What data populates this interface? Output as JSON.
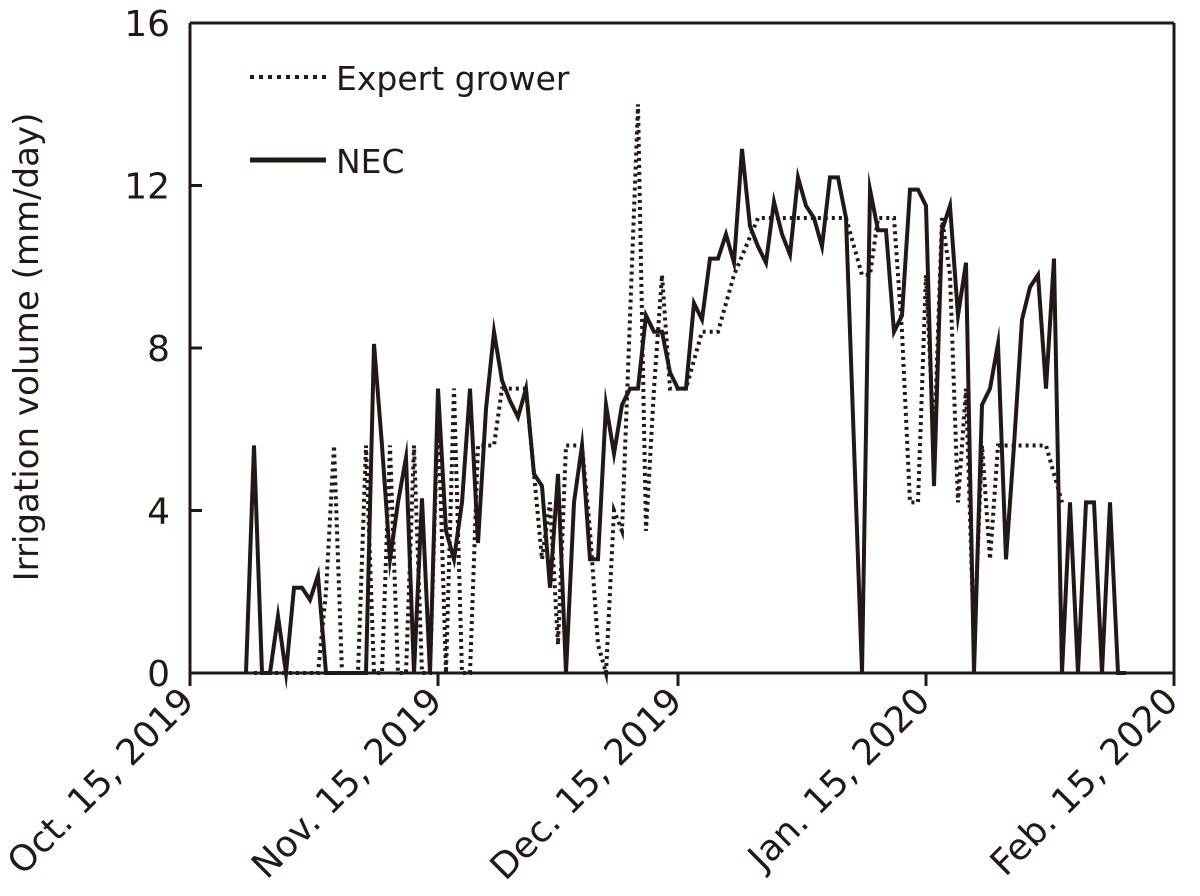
{
  "chart_data": {
    "type": "line",
    "title": "",
    "xlabel": "",
    "ylabel": "Irrigation volume (mm/day)",
    "ylim": [
      0,
      16
    ],
    "yticks": [
      0,
      4,
      8,
      12,
      16
    ],
    "xlim": [
      "2019-10-15",
      "2020-02-15"
    ],
    "xticks": [
      {
        "date": "2019-10-15",
        "label": "Oct. 15, 2019"
      },
      {
        "date": "2019-11-15",
        "label": "Nov. 15, 2019"
      },
      {
        "date": "2019-12-15",
        "label": "Dec. 15, 2019"
      },
      {
        "date": "2020-01-15",
        "label": "Jan. 15, 2020"
      },
      {
        "date": "2020-02-15",
        "label": "Feb. 15, 2020"
      }
    ],
    "grid": false,
    "legend_position": "top-left",
    "series": [
      {
        "name": "Expert grower",
        "style": "dotted",
        "color": "#231815",
        "points": [
          [
            "2019-10-23",
            0
          ],
          [
            "2019-10-31",
            0
          ],
          [
            "2019-11-01",
            2.0
          ],
          [
            "2019-11-02",
            5.6
          ],
          [
            "2019-11-03",
            0
          ],
          [
            "2019-11-04",
            0
          ],
          [
            "2019-11-05",
            0
          ],
          [
            "2019-11-06",
            5.6
          ],
          [
            "2019-11-07",
            0
          ],
          [
            "2019-11-08",
            0
          ],
          [
            "2019-11-09",
            5.6
          ],
          [
            "2019-11-10",
            0
          ],
          [
            "2019-11-11",
            0
          ],
          [
            "2019-11-12",
            5.6
          ],
          [
            "2019-11-13",
            0
          ],
          [
            "2019-11-14",
            0
          ],
          [
            "2019-11-15",
            6.5
          ],
          [
            "2019-11-16",
            0
          ],
          [
            "2019-11-17",
            7.0
          ],
          [
            "2019-11-18",
            0
          ],
          [
            "2019-11-19",
            0
          ],
          [
            "2019-11-20",
            5.6
          ],
          [
            "2019-11-22",
            5.6
          ],
          [
            "2019-11-23",
            7.0
          ],
          [
            "2019-11-26",
            7.0
          ],
          [
            "2019-11-28",
            2.8
          ],
          [
            "2019-11-29",
            4.2
          ],
          [
            "2019-11-30",
            0.7
          ],
          [
            "2019-12-01",
            5.6
          ],
          [
            "2019-12-03",
            5.6
          ],
          [
            "2019-12-04",
            3.5
          ],
          [
            "2019-12-05",
            0.7
          ],
          [
            "2019-12-06",
            0
          ],
          [
            "2019-12-07",
            4.0
          ],
          [
            "2019-12-08",
            3.5
          ],
          [
            "2019-12-10",
            14.0
          ],
          [
            "2019-12-11",
            3.5
          ],
          [
            "2019-12-12",
            7.0
          ],
          [
            "2019-12-13",
            9.8
          ],
          [
            "2019-12-14",
            7.0
          ],
          [
            "2019-12-16",
            7.0
          ],
          [
            "2019-12-18",
            8.4
          ],
          [
            "2019-12-20",
            8.4
          ],
          [
            "2019-12-22",
            9.8
          ],
          [
            "2019-12-25",
            11.2
          ],
          [
            "2019-12-30",
            11.2
          ],
          [
            "2020-01-05",
            11.2
          ],
          [
            "2020-01-07",
            9.8
          ],
          [
            "2020-01-08",
            9.8
          ],
          [
            "2020-01-09",
            11.2
          ],
          [
            "2020-01-11",
            11.2
          ],
          [
            "2020-01-12",
            8.4
          ],
          [
            "2020-01-13",
            4.2
          ],
          [
            "2020-01-14",
            4.2
          ],
          [
            "2020-01-15",
            9.8
          ],
          [
            "2020-01-16",
            5.6
          ],
          [
            "2020-01-17",
            11.2
          ],
          [
            "2020-01-18",
            9.8
          ],
          [
            "2020-01-19",
            4.2
          ],
          [
            "2020-01-20",
            7.0
          ],
          [
            "2020-01-21",
            0.7
          ],
          [
            "2020-01-22",
            5.6
          ],
          [
            "2020-01-23",
            2.8
          ],
          [
            "2020-01-24",
            5.6
          ],
          [
            "2020-01-27",
            5.6
          ],
          [
            "2020-01-30",
            5.6
          ],
          [
            "2020-02-01",
            4.2
          ]
        ]
      },
      {
        "name": "NEC",
        "style": "solid",
        "color": "#231815",
        "points": [
          [
            "2019-10-22",
            0
          ],
          [
            "2019-10-23",
            5.6
          ],
          [
            "2019-10-24",
            0
          ],
          [
            "2019-10-25",
            0
          ],
          [
            "2019-10-26",
            1.4
          ],
          [
            "2019-10-27",
            0
          ],
          [
            "2019-10-28",
            2.1
          ],
          [
            "2019-10-29",
            2.1
          ],
          [
            "2019-10-30",
            1.8
          ],
          [
            "2019-10-31",
            2.4
          ],
          [
            "2019-11-01",
            0
          ],
          [
            "2019-11-02",
            0
          ],
          [
            "2019-11-03",
            0
          ],
          [
            "2019-11-04",
            0
          ],
          [
            "2019-11-05",
            0
          ],
          [
            "2019-11-06",
            0
          ],
          [
            "2019-11-07",
            8.1
          ],
          [
            "2019-11-08",
            5.6
          ],
          [
            "2019-11-09",
            2.8
          ],
          [
            "2019-11-10",
            4.2
          ],
          [
            "2019-11-11",
            5.3
          ],
          [
            "2019-11-12",
            0
          ],
          [
            "2019-11-13",
            4.3
          ],
          [
            "2019-11-14",
            0
          ],
          [
            "2019-11-15",
            7.0
          ],
          [
            "2019-11-16",
            3.5
          ],
          [
            "2019-11-17",
            2.8
          ],
          [
            "2019-11-18",
            4.2
          ],
          [
            "2019-11-19",
            7.0
          ],
          [
            "2019-11-20",
            3.2
          ],
          [
            "2019-11-21",
            6.5
          ],
          [
            "2019-11-22",
            8.4
          ],
          [
            "2019-11-23",
            7.2
          ],
          [
            "2019-11-24",
            6.7
          ],
          [
            "2019-11-25",
            6.3
          ],
          [
            "2019-11-26",
            7.0
          ],
          [
            "2019-11-27",
            4.9
          ],
          [
            "2019-11-28",
            4.6
          ],
          [
            "2019-11-29",
            2.1
          ],
          [
            "2019-11-30",
            4.9
          ],
          [
            "2019-12-01",
            0
          ],
          [
            "2019-12-02",
            4.2
          ],
          [
            "2019-12-03",
            5.6
          ],
          [
            "2019-12-04",
            2.8
          ],
          [
            "2019-12-05",
            2.8
          ],
          [
            "2019-12-06",
            6.6
          ],
          [
            "2019-12-07",
            5.4
          ],
          [
            "2019-12-08",
            6.6
          ],
          [
            "2019-12-09",
            7.0
          ],
          [
            "2019-12-10",
            7.0
          ],
          [
            "2019-12-11",
            8.8
          ],
          [
            "2019-12-12",
            8.4
          ],
          [
            "2019-12-13",
            8.4
          ],
          [
            "2019-12-14",
            7.4
          ],
          [
            "2019-12-15",
            7.0
          ],
          [
            "2019-12-16",
            7.0
          ],
          [
            "2019-12-17",
            9.1
          ],
          [
            "2019-12-18",
            8.7
          ],
          [
            "2019-12-19",
            10.2
          ],
          [
            "2019-12-20",
            10.2
          ],
          [
            "2019-12-21",
            10.8
          ],
          [
            "2019-12-22",
            10.1
          ],
          [
            "2019-12-23",
            12.9
          ],
          [
            "2019-12-24",
            11.0
          ],
          [
            "2019-12-25",
            10.5
          ],
          [
            "2019-12-26",
            10.1
          ],
          [
            "2019-12-27",
            11.6
          ],
          [
            "2019-12-28",
            10.8
          ],
          [
            "2019-12-29",
            10.3
          ],
          [
            "2019-12-30",
            12.2
          ],
          [
            "2019-12-31",
            11.5
          ],
          [
            "2020-01-01",
            11.2
          ],
          [
            "2020-01-02",
            10.5
          ],
          [
            "2020-01-03",
            12.2
          ],
          [
            "2020-01-04",
            12.2
          ],
          [
            "2020-01-05",
            11.2
          ],
          [
            "2020-01-06",
            5.6
          ],
          [
            "2020-01-07",
            0
          ],
          [
            "2020-01-08",
            11.9
          ],
          [
            "2020-01-09",
            10.9
          ],
          [
            "2020-01-10",
            10.9
          ],
          [
            "2020-01-11",
            8.4
          ],
          [
            "2020-01-12",
            8.8
          ],
          [
            "2020-01-13",
            11.9
          ],
          [
            "2020-01-14",
            11.9
          ],
          [
            "2020-01-15",
            11.5
          ],
          [
            "2020-01-16",
            4.6
          ],
          [
            "2020-01-17",
            10.9
          ],
          [
            "2020-01-18",
            11.5
          ],
          [
            "2020-01-19",
            8.8
          ],
          [
            "2020-01-20",
            10.1
          ],
          [
            "2020-01-21",
            0
          ],
          [
            "2020-01-22",
            6.6
          ],
          [
            "2020-01-23",
            7.0
          ],
          [
            "2020-01-24",
            8.1
          ],
          [
            "2020-01-25",
            2.8
          ],
          [
            "2020-01-26",
            5.6
          ],
          [
            "2020-01-27",
            8.7
          ],
          [
            "2020-01-28",
            9.5
          ],
          [
            "2020-01-29",
            9.8
          ],
          [
            "2020-01-30",
            7.0
          ],
          [
            "2020-01-31",
            10.2
          ],
          [
            "2020-02-01",
            0
          ],
          [
            "2020-02-02",
            4.2
          ],
          [
            "2020-02-03",
            0
          ],
          [
            "2020-02-04",
            4.2
          ],
          [
            "2020-02-05",
            4.2
          ],
          [
            "2020-02-06",
            0
          ],
          [
            "2020-02-07",
            4.2
          ],
          [
            "2020-02-08",
            0
          ],
          [
            "2020-02-09",
            0
          ]
        ]
      }
    ]
  }
}
